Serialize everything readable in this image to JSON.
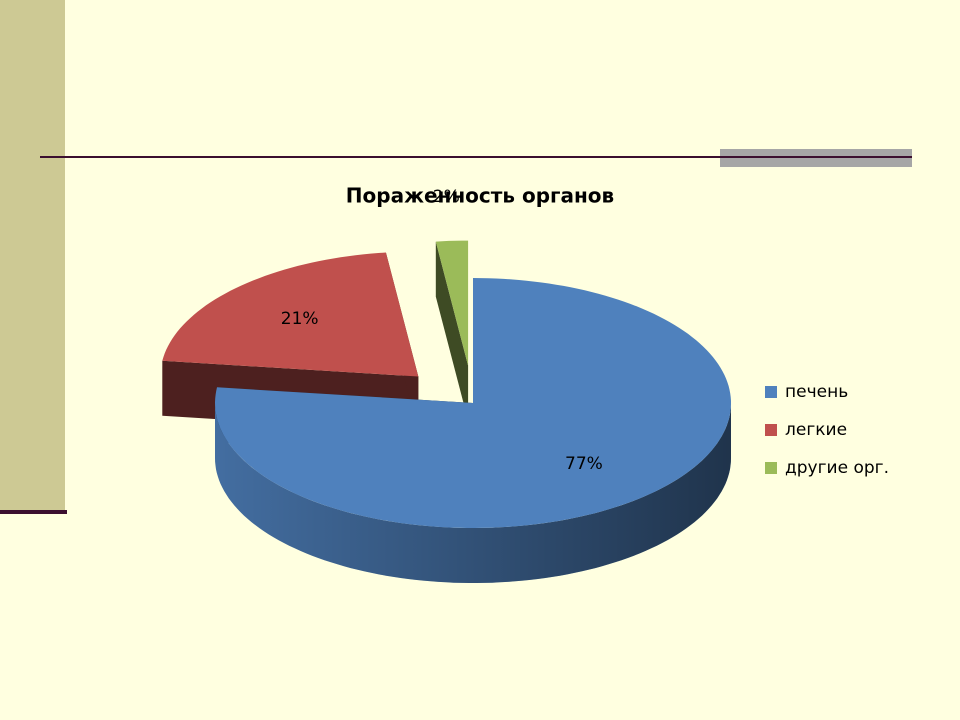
{
  "chart_data": {
    "type": "pie",
    "title": "Пораженность  органов",
    "categories": [
      "печень",
      "легкие",
      "другие орг."
    ],
    "values": [
      77,
      21,
      2
    ],
    "value_labels": [
      "77%",
      "21%",
      "2%"
    ],
    "colors": [
      "#4f81bd",
      "#c0504d",
      "#9bbb59"
    ],
    "legend": "right"
  }
}
